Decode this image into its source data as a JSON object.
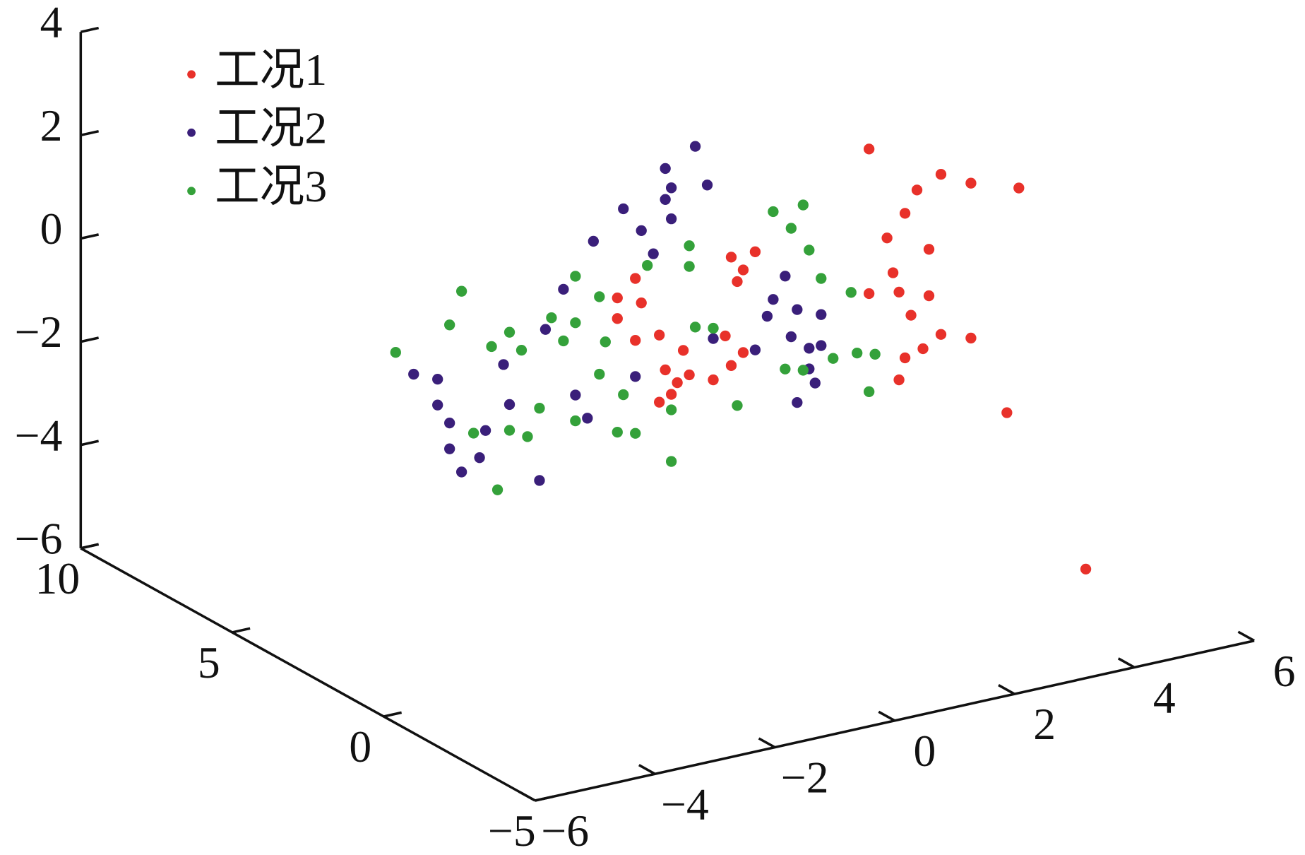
{
  "chart_data": {
    "type": "scatter3d",
    "xlim": [
      -6,
      6
    ],
    "xticks": [
      {
        "value": -6,
        "label": "−6"
      },
      {
        "value": -4,
        "label": "−4"
      },
      {
        "value": -2,
        "label": "−2"
      },
      0,
      2,
      4,
      6
    ],
    "ylim": [
      -5,
      10
    ],
    "yticks": [
      {
        "value": -5,
        "label": "−5"
      },
      0,
      5,
      10
    ],
    "zlim": [
      -6,
      4
    ],
    "zticks": [
      {
        "value": -6,
        "label": "−6"
      },
      {
        "value": -4,
        "label": "−4"
      },
      {
        "value": -2,
        "label": "−2"
      },
      0,
      2,
      4
    ],
    "series": [
      {
        "name": "工况1",
        "color": "#e8312a",
        "x": [
          2.1,
          3.3,
          2.9,
          3.8,
          4.6,
          2.7,
          2.4,
          3.1,
          2.5,
          2.6,
          3.1,
          2.8,
          3.8,
          3.3,
          3.0,
          2.7,
          2.6,
          4.4,
          4.2,
          2.1,
          -1.8,
          -2.1,
          -1.7,
          -1.4,
          -1.3,
          -1.1,
          -1.4,
          -0.9,
          -0.2,
          0.2,
          -0.1,
          -0.3,
          0.0,
          -0.5,
          -0.2,
          -1.8,
          -2.1,
          -1.0,
          -1.2,
          0.0
        ],
        "y": [
          0,
          0,
          0,
          0,
          0,
          0,
          0,
          0,
          0,
          0,
          0,
          0,
          0,
          0,
          0,
          0,
          0,
          0,
          -3,
          0,
          0,
          0,
          0,
          0,
          0,
          0,
          0,
          0,
          0,
          0,
          0,
          0,
          0,
          0,
          0,
          0,
          0,
          0,
          0,
          0
        ],
        "z": [
          2.9,
          2.1,
          1.9,
          1.8,
          1.5,
          1.5,
          1.1,
          0.7,
          0.4,
          0.0,
          -0.2,
          -0.5,
          -1.2,
          -1.0,
          -1.2,
          -1.3,
          -1.7,
          -2.8,
          -4.8,
          0.1,
          1.4,
          0.7,
          0.9,
          0.2,
          -0.5,
          -0.8,
          -1.1,
          -0.7,
          1.4,
          1.4,
          0.9,
          -0.1,
          -0.5,
          -0.9,
          -0.7,
          0.2,
          1.1,
          -0.2,
          -1.0,
          1.1
        ]
      },
      {
        "name": "工况2",
        "color": "#3a1f7a",
        "x": [
          -0.8,
          -1.3,
          -1.2,
          -1.3,
          -2.0,
          -1.7,
          -1.2,
          -0.6,
          -2.5,
          -1.5,
          -3.0,
          -5.5,
          -5.1,
          -5.1,
          -4.9,
          -4.9,
          -4.7,
          -4.4,
          -4.3,
          -3.9,
          -4.0,
          -3.4,
          -3.3,
          -2.8,
          -2.6,
          0.7,
          0.9,
          1.1,
          1.2,
          0.8,
          1.3,
          0.4,
          -0.5,
          0.2,
          0.9,
          1.3,
          0.5,
          1.1,
          -1.8
        ],
        "y": [
          0,
          0,
          0,
          0,
          0,
          0,
          0,
          0,
          0,
          0,
          0,
          0,
          0,
          0,
          0,
          0,
          0,
          0,
          0,
          0,
          0,
          0,
          0,
          0,
          0,
          0,
          0,
          0,
          0,
          0,
          0,
          0,
          0,
          0,
          0,
          0,
          0,
          0,
          0
        ],
        "z": [
          3.7,
          3.4,
          3.0,
          2.8,
          2.8,
          2.3,
          2.4,
          2.9,
          2.3,
          1.8,
          1.5,
          0.5,
          0.3,
          -0.2,
          -0.6,
          -1.1,
          -1.6,
          -1.4,
          -0.9,
          -0.5,
          0.3,
          -2.1,
          0.8,
          -0.6,
          -1.1,
          0.8,
          0.1,
          -0.7,
          -1.4,
          -0.4,
          -0.1,
          0.1,
          -0.1,
          -0.5,
          -1.7,
          -0.7,
          0.4,
          -1.1,
          -0.5
        ]
      },
      {
        "name": "工况3",
        "color": "#34a13a",
        "x": [
          -5.8,
          -4.7,
          -4.9,
          -4.2,
          -3.9,
          -3.7,
          -3.2,
          -2.8,
          -2.8,
          -3.0,
          -4.5,
          -3.9,
          -4.1,
          -3.6,
          -3.4,
          -2.8,
          -2.4,
          -2.3,
          -2.1,
          -1.8,
          -1.6,
          -0.9,
          -0.9,
          -1.2,
          -1.2,
          0.5,
          1.0,
          0.8,
          1.1,
          1.3,
          1.8,
          1.9,
          2.2,
          2.1,
          1.5,
          0.7,
          -0.1,
          -0.5,
          -0.8,
          -2.4,
          -2.0,
          1.0
        ],
        "y": [
          0,
          0,
          0,
          0,
          0,
          0,
          0,
          0,
          0,
          0,
          0,
          0,
          0,
          0,
          0,
          0,
          0,
          0,
          0,
          0,
          0,
          0,
          0,
          0,
          0,
          0,
          0,
          0,
          0,
          0,
          0,
          0,
          0,
          0,
          0,
          0,
          0,
          0,
          0,
          0,
          0,
          0
        ],
        "z": [
          1.0,
          1.9,
          1.3,
          0.7,
          0.9,
          0.5,
          1.0,
          1.7,
          0.8,
          0.5,
          -0.9,
          -1.0,
          -2.1,
          -1.2,
          -0.7,
          -1.1,
          1.2,
          0.3,
          -1.5,
          -1.6,
          1.6,
          1.8,
          1.4,
          -2.3,
          -1.3,
          2.1,
          2.1,
          1.7,
          1.2,
          0.6,
          0.2,
          -1.0,
          -1.1,
          -1.8,
          -1.0,
          -1.0,
          -1.5,
          0.1,
          0.2,
          -0.3,
          -0.8,
          -1.1
        ]
      }
    ]
  }
}
